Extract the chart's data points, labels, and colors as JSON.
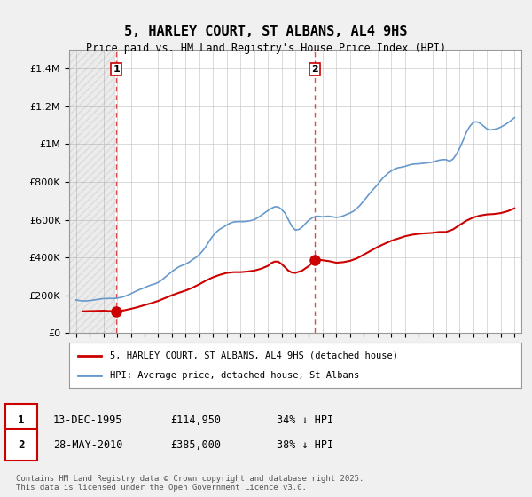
{
  "title": "5, HARLEY COURT, ST ALBANS, AL4 9HS",
  "subtitle": "Price paid vs. HM Land Registry's House Price Index (HPI)",
  "xlabel": "",
  "ylabel": "",
  "ylim": [
    0,
    1500000
  ],
  "yticks": [
    0,
    200000,
    400000,
    600000,
    800000,
    1000000,
    1200000,
    1400000
  ],
  "ytick_labels": [
    "£0",
    "£200K",
    "£400K",
    "£600K",
    "£800K",
    "£1M",
    "£1.2M",
    "£1.4M"
  ],
  "background_color": "#f0f0f0",
  "plot_bg_color": "#ffffff",
  "line1_color": "#cc0000",
  "line2_color": "#6699cc",
  "marker_color": "#cc0000",
  "purchase1_year": 1995.95,
  "purchase1_price": 114950,
  "purchase2_year": 2010.4,
  "purchase2_price": 385000,
  "legend_line1": "5, HARLEY COURT, ST ALBANS, AL4 9HS (detached house)",
  "legend_line2": "HPI: Average price, detached house, St Albans",
  "table_row1": [
    "1",
    "13-DEC-1995",
    "£114,950",
    "34% ↓ HPI"
  ],
  "table_row2": [
    "2",
    "28-MAY-2010",
    "£385,000",
    "38% ↓ HPI"
  ],
  "footnote": "Contains HM Land Registry data © Crown copyright and database right 2025.\nThis data is licensed under the Open Government Licence v3.0.",
  "hpi_data_x": [
    1993.0,
    1993.25,
    1993.5,
    1993.75,
    1994.0,
    1994.25,
    1994.5,
    1994.75,
    1995.0,
    1995.25,
    1995.5,
    1995.75,
    1996.0,
    1996.25,
    1996.5,
    1996.75,
    1997.0,
    1997.25,
    1997.5,
    1997.75,
    1998.0,
    1998.25,
    1998.5,
    1998.75,
    1999.0,
    1999.25,
    1999.5,
    1999.75,
    2000.0,
    2000.25,
    2000.5,
    2000.75,
    2001.0,
    2001.25,
    2001.5,
    2001.75,
    2002.0,
    2002.25,
    2002.5,
    2002.75,
    2003.0,
    2003.25,
    2003.5,
    2003.75,
    2004.0,
    2004.25,
    2004.5,
    2004.75,
    2005.0,
    2005.25,
    2005.5,
    2005.75,
    2006.0,
    2006.25,
    2006.5,
    2006.75,
    2007.0,
    2007.25,
    2007.5,
    2007.75,
    2008.0,
    2008.25,
    2008.5,
    2008.75,
    2009.0,
    2009.25,
    2009.5,
    2009.75,
    2010.0,
    2010.25,
    2010.5,
    2010.75,
    2011.0,
    2011.25,
    2011.5,
    2011.75,
    2012.0,
    2012.25,
    2012.5,
    2012.75,
    2013.0,
    2013.25,
    2013.5,
    2013.75,
    2014.0,
    2014.25,
    2014.5,
    2014.75,
    2015.0,
    2015.25,
    2015.5,
    2015.75,
    2016.0,
    2016.25,
    2016.5,
    2016.75,
    2017.0,
    2017.25,
    2017.5,
    2017.75,
    2018.0,
    2018.25,
    2018.5,
    2018.75,
    2019.0,
    2019.25,
    2019.5,
    2019.75,
    2020.0,
    2020.25,
    2020.5,
    2020.75,
    2021.0,
    2021.25,
    2021.5,
    2021.75,
    2022.0,
    2022.25,
    2022.5,
    2022.75,
    2023.0,
    2023.25,
    2023.5,
    2023.75,
    2024.0,
    2024.25,
    2024.5,
    2024.75,
    2025.0
  ],
  "hpi_data_y": [
    175000,
    172000,
    170000,
    170000,
    172000,
    174000,
    177000,
    180000,
    182000,
    183000,
    183000,
    183000,
    185000,
    188000,
    193000,
    200000,
    208000,
    217000,
    226000,
    233000,
    240000,
    248000,
    255000,
    260000,
    268000,
    280000,
    295000,
    310000,
    325000,
    338000,
    350000,
    358000,
    365000,
    375000,
    388000,
    400000,
    415000,
    435000,
    460000,
    490000,
    515000,
    535000,
    550000,
    560000,
    572000,
    582000,
    588000,
    590000,
    590000,
    590000,
    592000,
    595000,
    600000,
    610000,
    622000,
    635000,
    648000,
    660000,
    668000,
    668000,
    655000,
    635000,
    600000,
    565000,
    545000,
    548000,
    560000,
    580000,
    598000,
    610000,
    618000,
    618000,
    615000,
    618000,
    618000,
    615000,
    612000,
    615000,
    620000,
    628000,
    635000,
    645000,
    660000,
    678000,
    700000,
    722000,
    745000,
    765000,
    785000,
    808000,
    828000,
    845000,
    858000,
    868000,
    875000,
    878000,
    882000,
    888000,
    893000,
    895000,
    896000,
    898000,
    900000,
    902000,
    905000,
    910000,
    915000,
    918000,
    918000,
    910000,
    920000,
    945000,
    980000,
    1020000,
    1065000,
    1095000,
    1115000,
    1118000,
    1110000,
    1095000,
    1080000,
    1075000,
    1078000,
    1082000,
    1090000,
    1100000,
    1112000,
    1125000,
    1140000
  ],
  "price_data_x": [
    1993.5,
    1994.0,
    1994.5,
    1995.0,
    1995.5,
    1995.95,
    1996.5,
    1997.0,
    1997.5,
    1998.0,
    1998.5,
    1999.0,
    1999.5,
    2000.0,
    2000.5,
    2001.0,
    2001.5,
    2002.0,
    2002.5,
    2003.0,
    2003.5,
    2004.0,
    2004.5,
    2005.0,
    2005.5,
    2006.0,
    2006.5,
    2007.0,
    2007.25,
    2007.5,
    2007.75,
    2008.0,
    2008.25,
    2008.5,
    2008.75,
    2009.0,
    2009.5,
    2010.0,
    2010.4,
    2010.75,
    2011.0,
    2011.5,
    2012.0,
    2012.5,
    2013.0,
    2013.5,
    2014.0,
    2014.5,
    2015.0,
    2015.5,
    2016.0,
    2016.5,
    2017.0,
    2017.5,
    2018.0,
    2018.5,
    2019.0,
    2019.5,
    2020.0,
    2020.5,
    2021.0,
    2021.5,
    2022.0,
    2022.5,
    2023.0,
    2023.5,
    2024.0,
    2024.5,
    2025.0
  ],
  "price_data_y": [
    115000,
    116000,
    117000,
    118000,
    116000,
    114950,
    120000,
    128000,
    137000,
    148000,
    158000,
    170000,
    185000,
    200000,
    213000,
    225000,
    240000,
    258000,
    278000,
    295000,
    308000,
    318000,
    322000,
    322000,
    325000,
    330000,
    340000,
    355000,
    370000,
    378000,
    378000,
    365000,
    348000,
    330000,
    320000,
    318000,
    330000,
    355000,
    385000,
    388000,
    385000,
    380000,
    372000,
    375000,
    382000,
    395000,
    415000,
    435000,
    455000,
    472000,
    488000,
    500000,
    512000,
    520000,
    525000,
    528000,
    530000,
    535000,
    535000,
    548000,
    572000,
    595000,
    612000,
    622000,
    628000,
    630000,
    635000,
    645000,
    660000
  ]
}
